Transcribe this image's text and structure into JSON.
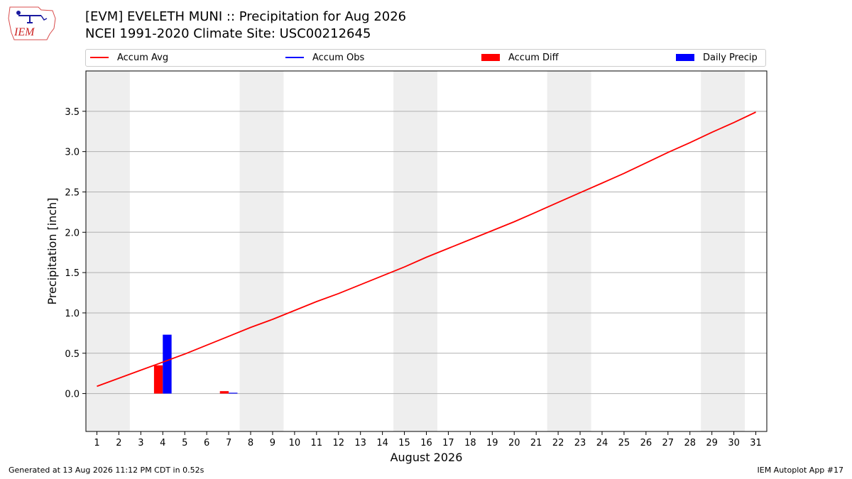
{
  "header": {
    "title": "[EVM] EVELETH MUNI :: Precipitation for Aug 2026",
    "subtitle": "NCEI 1991-2020 Climate Site: USC00212645",
    "logo_text": "IEM"
  },
  "legend": [
    {
      "label": "Accum Avg",
      "kind": "line",
      "color": "#ff0000"
    },
    {
      "label": "Accum Obs",
      "kind": "line",
      "color": "#0000ff"
    },
    {
      "label": "Accum Diff",
      "kind": "patch",
      "color": "#ff0000"
    },
    {
      "label": "Daily Precip",
      "kind": "patch",
      "color": "#0000ff"
    }
  ],
  "footer": {
    "left": "Generated at 13 Aug 2026 11:12 PM CDT in 0.52s",
    "right": "IEM Autoplot App #17"
  },
  "chart_data": {
    "type": "line",
    "xlabel": "August 2026",
    "ylabel": "Precipitation [inch]",
    "xlim": [
      0.5,
      31.5
    ],
    "ylim": [
      -0.47,
      4.0
    ],
    "grid": "y",
    "legend_position": "top",
    "x_ticks": [
      1,
      2,
      3,
      4,
      5,
      6,
      7,
      8,
      9,
      10,
      11,
      12,
      13,
      14,
      15,
      16,
      17,
      18,
      19,
      20,
      21,
      22,
      23,
      24,
      25,
      26,
      27,
      28,
      29,
      30,
      31
    ],
    "y_ticks": [
      0.0,
      0.5,
      1.0,
      1.5,
      2.0,
      2.5,
      3.0,
      3.5
    ],
    "y_tick_labels": [
      "0.0",
      "0.5",
      "1.0",
      "1.5",
      "2.0",
      "2.5",
      "3.0",
      "3.5"
    ],
    "weekend_shading": [
      [
        0.5,
        2.5
      ],
      [
        7.5,
        9.5
      ],
      [
        14.5,
        16.5
      ],
      [
        21.5,
        23.5
      ],
      [
        28.5,
        30.5
      ]
    ],
    "weekend_color": "#eeeeee",
    "series": [
      {
        "name": "Accum Avg",
        "kind": "line",
        "color": "#ff0000",
        "x": [
          1,
          2,
          3,
          4,
          5,
          6,
          7,
          8,
          9,
          10,
          11,
          12,
          13,
          14,
          15,
          16,
          17,
          18,
          19,
          20,
          21,
          22,
          23,
          24,
          25,
          26,
          27,
          28,
          29,
          30,
          31
        ],
        "values": [
          0.09,
          0.19,
          0.29,
          0.39,
          0.49,
          0.6,
          0.71,
          0.82,
          0.92,
          1.03,
          1.14,
          1.24,
          1.35,
          1.46,
          1.57,
          1.69,
          1.8,
          1.91,
          2.02,
          2.13,
          2.25,
          2.37,
          2.49,
          2.61,
          2.73,
          2.86,
          2.99,
          3.11,
          3.24,
          3.36,
          3.49
        ]
      },
      {
        "name": "Accum Diff",
        "kind": "bar",
        "color": "#ff0000",
        "x": [
          4,
          7
        ],
        "values": [
          0.35,
          0.03
        ]
      },
      {
        "name": "Daily Precip",
        "kind": "bar",
        "color": "#0000ff",
        "x": [
          4,
          7
        ],
        "values": [
          0.73,
          0.01
        ]
      }
    ]
  }
}
